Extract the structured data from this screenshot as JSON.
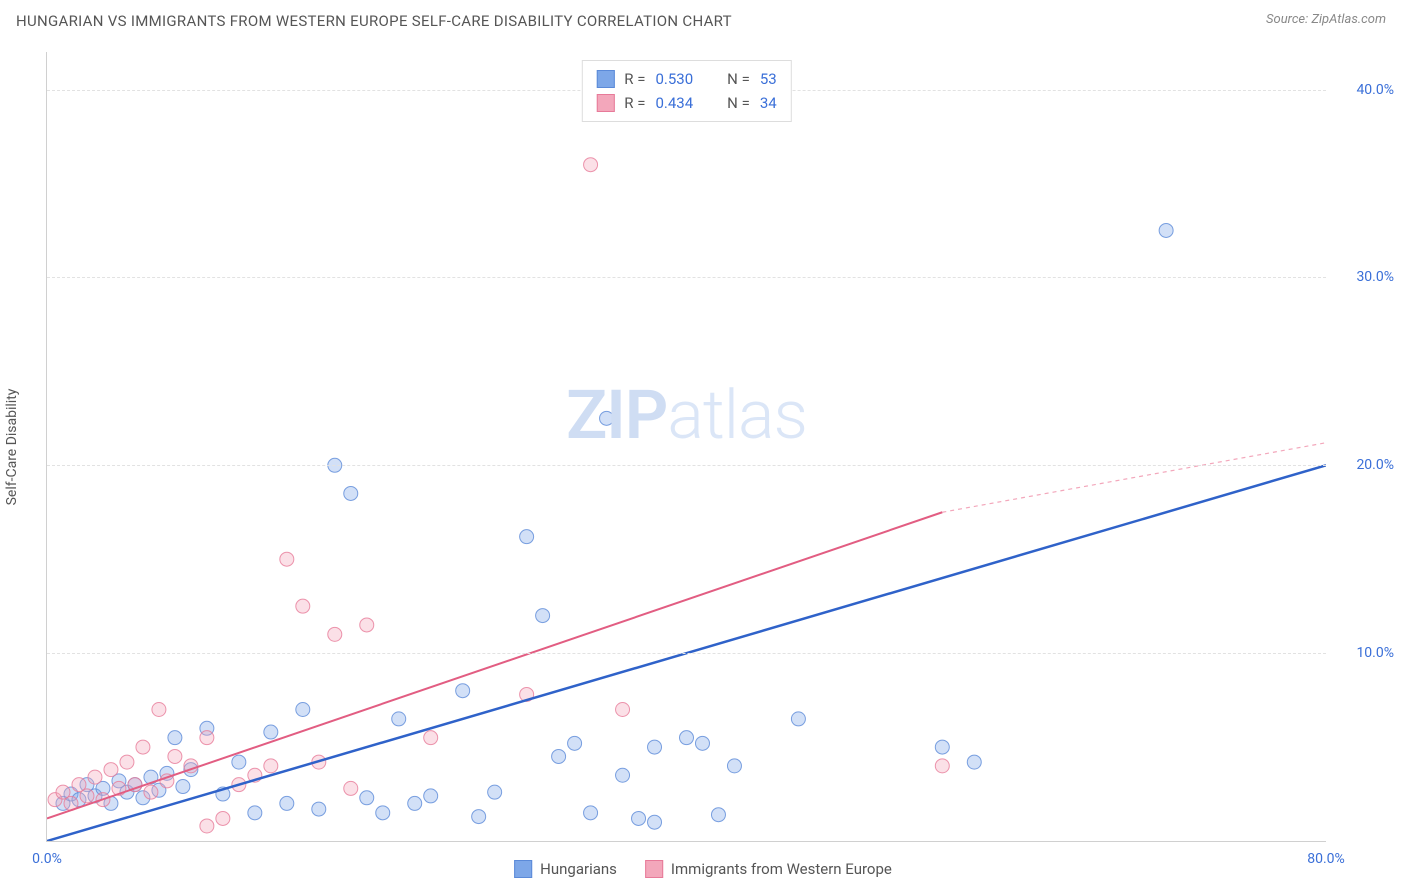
{
  "header": {
    "title": "HUNGARIAN VS IMMIGRANTS FROM WESTERN EUROPE SELF-CARE DISABILITY CORRELATION CHART",
    "source_prefix": "Source: ",
    "source_name": "ZipAtlas.com"
  },
  "chart": {
    "type": "scatter",
    "ylabel": "Self-Care Disability",
    "xlim": [
      0,
      80
    ],
    "ylim": [
      0,
      42
    ],
    "xtick_values": [
      0,
      80
    ],
    "xtick_labels": [
      "0.0%",
      "80.0%"
    ],
    "ytick_values": [
      10,
      20,
      30,
      40
    ],
    "ytick_labels": [
      "10.0%",
      "20.0%",
      "30.0%",
      "40.0%"
    ],
    "background_color": "#ffffff",
    "grid_color": "#e2e2e2",
    "axis_color": "#d0d0d0",
    "tick_label_color": "#3a6fd8",
    "marker_radius": 7,
    "series": [
      {
        "name": "Hungarians",
        "color_fill": "#7da7e8",
        "color_stroke": "#5b8ad8",
        "r_value": "0.530",
        "n_value": "53",
        "trend": {
          "x1": 0,
          "y1": 0,
          "x2": 80,
          "y2": 20,
          "color": "#2f62c9",
          "width": 2.5,
          "dash": null
        },
        "points": [
          [
            1,
            2.0
          ],
          [
            1.5,
            2.5
          ],
          [
            2,
            2.2
          ],
          [
            2.5,
            3.0
          ],
          [
            3,
            2.4
          ],
          [
            3.5,
            2.8
          ],
          [
            4,
            2.0
          ],
          [
            4.5,
            3.2
          ],
          [
            5,
            2.6
          ],
          [
            5.5,
            3.0
          ],
          [
            6,
            2.3
          ],
          [
            6.5,
            3.4
          ],
          [
            7,
            2.7
          ],
          [
            7.5,
            3.6
          ],
          [
            8,
            5.5
          ],
          [
            8.5,
            2.9
          ],
          [
            9,
            3.8
          ],
          [
            10,
            6.0
          ],
          [
            11,
            2.5
          ],
          [
            12,
            4.2
          ],
          [
            13,
            1.5
          ],
          [
            14,
            5.8
          ],
          [
            15,
            2.0
          ],
          [
            16,
            7.0
          ],
          [
            17,
            1.7
          ],
          [
            18,
            20.0
          ],
          [
            19,
            18.5
          ],
          [
            20,
            2.3
          ],
          [
            21,
            1.5
          ],
          [
            22,
            6.5
          ],
          [
            23,
            2.0
          ],
          [
            24,
            2.4
          ],
          [
            26,
            8.0
          ],
          [
            27,
            1.3
          ],
          [
            28,
            2.6
          ],
          [
            30,
            16.2
          ],
          [
            31,
            12.0
          ],
          [
            32,
            4.5
          ],
          [
            33,
            5.2
          ],
          [
            34,
            1.5
          ],
          [
            35,
            22.5
          ],
          [
            36,
            3.5
          ],
          [
            37,
            1.2
          ],
          [
            38,
            5.0
          ],
          [
            40,
            5.5
          ],
          [
            41,
            5.2
          ],
          [
            42,
            1.4
          ],
          [
            43,
            4.0
          ],
          [
            47,
            6.5
          ],
          [
            56,
            5.0
          ],
          [
            58,
            4.2
          ],
          [
            70,
            32.5
          ],
          [
            38,
            1.0
          ]
        ]
      },
      {
        "name": "Immigrants from Western Europe",
        "color_fill": "#f3a7bb",
        "color_stroke": "#e77a99",
        "r_value": "0.434",
        "n_value": "34",
        "trend": {
          "x1": 0,
          "y1": 1.2,
          "x2": 56,
          "y2": 17.5,
          "color": "#e25d82",
          "width": 2,
          "dash": null
        },
        "trend_ext": {
          "x1": 56,
          "y1": 17.5,
          "x2": 80,
          "y2": 21.2,
          "color": "#f3a7bb",
          "width": 1.2,
          "dash": "4 4"
        },
        "points": [
          [
            0.5,
            2.2
          ],
          [
            1,
            2.6
          ],
          [
            1.5,
            2.0
          ],
          [
            2,
            3.0
          ],
          [
            2.5,
            2.4
          ],
          [
            3,
            3.4
          ],
          [
            3.5,
            2.2
          ],
          [
            4,
            3.8
          ],
          [
            4.5,
            2.8
          ],
          [
            5,
            4.2
          ],
          [
            5.5,
            3.0
          ],
          [
            6,
            5.0
          ],
          [
            6.5,
            2.6
          ],
          [
            7,
            7.0
          ],
          [
            7.5,
            3.2
          ],
          [
            8,
            4.5
          ],
          [
            9,
            4.0
          ],
          [
            10,
            5.5
          ],
          [
            11,
            1.2
          ],
          [
            12,
            3.0
          ],
          [
            13,
            3.5
          ],
          [
            14,
            4.0
          ],
          [
            15,
            15.0
          ],
          [
            16,
            12.5
          ],
          [
            17,
            4.2
          ],
          [
            18,
            11.0
          ],
          [
            19,
            2.8
          ],
          [
            20,
            11.5
          ],
          [
            24,
            5.5
          ],
          [
            30,
            7.8
          ],
          [
            34,
            36.0
          ],
          [
            36,
            7.0
          ],
          [
            56,
            4.0
          ],
          [
            10,
            0.8
          ]
        ]
      }
    ]
  },
  "legend_top": {
    "r_label": "R =",
    "n_label": "N ="
  },
  "legend_bottom": {
    "items": [
      "Hungarians",
      "Immigrants from Western Europe"
    ]
  },
  "watermark": {
    "bold": "ZIP",
    "light": "atlas"
  }
}
